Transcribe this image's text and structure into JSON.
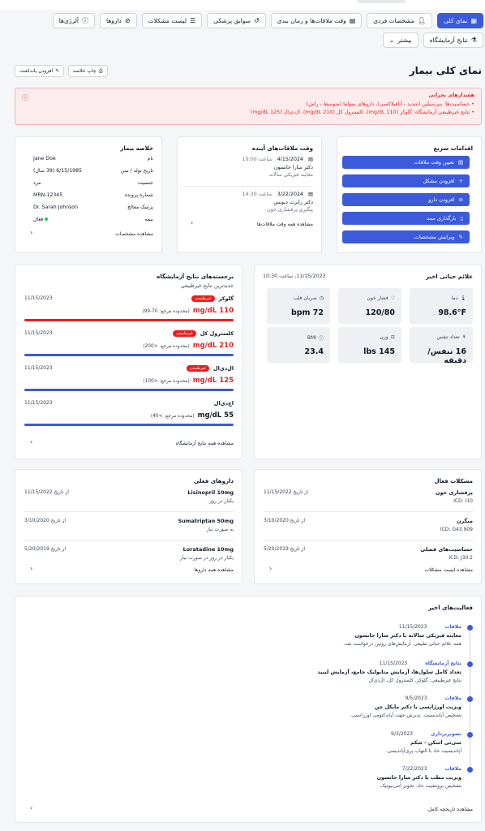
{
  "tabs": [
    {
      "label": "نمای کلی",
      "icon": "grid-icon",
      "active": true
    },
    {
      "label": "مشخصات فردی",
      "icon": "user-icon"
    },
    {
      "label": "وقت ملاقات‌ها و زمان بندی",
      "icon": "calendar-icon"
    },
    {
      "label": "سوابق پزشکی",
      "icon": "history-icon"
    },
    {
      "label": "لیست مشکلات",
      "icon": "list-icon"
    },
    {
      "label": "داروها",
      "icon": "pill-icon"
    },
    {
      "label": "آلرژی‌ها",
      "icon": "alert-circle-icon"
    },
    {
      "label": "نتایج آزمایشگاه",
      "icon": "flask-icon"
    }
  ],
  "more_tab": "بیشتر",
  "page_title": "نمای کلی بیمار",
  "print_button": "چاپ خلاصه",
  "note_button": "افزودن یادداشت",
  "alert": {
    "title": "هشدارهای بحرانی",
    "lines": [
      "• حساسیت‌ها: پنی‌سیلین (شدید - آنافیلاکسی)، داروهای سولفا (متوسط - راش)",
      "• نتایج غیرطبیعی آزمایشگاه: گلوکز (110 mg/dL)، کلسترول کل (210 mg/dL)، ال‌دی‌ال (125 mg/dL)"
    ]
  },
  "quick_actions": {
    "title": "اقدامات سریع",
    "items": [
      "تعیین وقت ملاقات",
      "افزودن مشکل",
      "افزودن دارو",
      "بارگذاری سند",
      "ویرایش مشخصات"
    ]
  },
  "appointments": {
    "title": "وقت ملاقات‌های آینده",
    "items": [
      {
        "date": "4/15/2024",
        "time": "ساعت 10:00",
        "doctor": "دکتر سارا جانسون",
        "desc": "معاینه فیزیکی سالانه"
      },
      {
        "date": "3/22/2024",
        "time": "ساعت 14:30",
        "doctor": "دکتر رابرت دیویس",
        "desc": "پیگیری پرفشاری خون"
      }
    ],
    "link": "مشاهده همه وقت ملاقات‌ها"
  },
  "summary": {
    "title": "خلاصه بیمار",
    "rows": [
      {
        "k": "نام",
        "v": "Jane Doe"
      },
      {
        "k": "تاریخ تولد / سن",
        "v": "6/15/1985 (39 سال)"
      },
      {
        "k": "جنسیت",
        "v": "مرد"
      },
      {
        "k": "شماره پرونده",
        "v": "MRN-12345"
      },
      {
        "k": "پزشک معالج",
        "v": "Dr. Sarah Johnson"
      },
      {
        "k": "بیمه",
        "v": "فعال"
      }
    ],
    "link": "مشاهده مشخصات"
  },
  "vitals": {
    "title": "علائم حیاتی اخیر",
    "date": "11/15/2023، ساعت 10:30",
    "items": [
      {
        "label": "دما",
        "value": "98.6°F",
        "icon": "thermometer-icon"
      },
      {
        "label": "فشار خون",
        "value": "120/80",
        "icon": "heart-icon"
      },
      {
        "label": "ضربان قلب",
        "value": "72 bpm",
        "icon": "clock-icon"
      },
      {
        "label": "تعداد تنفس",
        "value": "16 تنفس/دقیقه",
        "icon": "lungs-icon"
      },
      {
        "label": "وزن",
        "value": "145 lbs",
        "icon": "scale-icon"
      },
      {
        "label": "BMI",
        "value": "23.4",
        "icon": "info-icon"
      }
    ]
  },
  "labs": {
    "title": "برجسته‌های نتایج آزمایشگاه",
    "subtitle": "جدیدترین نتایج غیرطبیعی",
    "badge": "غیرطبیعی",
    "items": [
      {
        "name": "گلوکز",
        "date": "11/15/2023",
        "value": "110 mg/dL",
        "range": "(محدوده مرجع: 70-99)",
        "abnormal": true
      },
      {
        "name": "کلسترول کل",
        "date": "11/15/2023",
        "value": "210 mg/dL",
        "range": "(محدوده مرجع: <200)",
        "abnormal": true
      },
      {
        "name": "ال‌دی‌ال",
        "date": "11/15/2023",
        "value": "125 mg/dL",
        "range": "(محدوده مرجع: <100)",
        "abnormal": true
      },
      {
        "name": "اچ‌دی‌ال",
        "date": "11/15/2023",
        "value": "55 mg/dL",
        "range": "(محدوده مرجع: >40)",
        "abnormal": false
      }
    ],
    "link": "مشاهده همه نتایج آزمایشگاه"
  },
  "problems": {
    "title": "مشکلات فعال",
    "items": [
      {
        "name": "پرفشاری خون",
        "sub": "ICD: I10",
        "date": "از تاریخ 11/15/2022"
      },
      {
        "name": "میگرن",
        "sub": "ICD: G43.909",
        "date": "از تاریخ 3/10/2020"
      },
      {
        "name": "حساسیت‌های فصلی",
        "sub": "ICD: J30.2",
        "date": "از تاریخ 5/20/2019"
      }
    ],
    "link": "مشاهده لیست مشکلات"
  },
  "medications": {
    "title": "داروهای فعلی",
    "items": [
      {
        "name": "Lisinopril 10mg",
        "sub": "یکبار در روز",
        "date": "از تاریخ 11/15/2022"
      },
      {
        "name": "Sumatriptan 50mg",
        "sub": "به صورت نیاز",
        "date": "از تاریخ 3/10/2020"
      },
      {
        "name": "Loratadine 10mg",
        "sub": "یکبار در روز در صورت نیاز",
        "date": "از تاریخ 5/20/2019"
      }
    ],
    "link": "مشاهده همه داروها"
  },
  "activity": {
    "title": "فعالیت‌های اخیر",
    "items": [
      {
        "type": "ملاقات",
        "date": "11/15/2023",
        "title": "معاینه فیزیکی سالانه با دکتر سارا جانسون",
        "desc": "همه علائم حیاتی طبیعی. آزمایش‌های روتین درخواست شد."
      },
      {
        "type": "نتایج آزمایشگاه",
        "date": "11/15/2023",
        "title": "تعداد کامل سلول‌ها، آزمایش متابولیک جامع، آزمایش لیپید",
        "desc": "نتایج غیرطبیعی: گلوکز، کلسترول کل، ال‌دی‌ال"
      },
      {
        "type": "ملاقات",
        "date": "9/5/2023",
        "title": "ویزیت اورژانسی با دکتر مایکل چن",
        "desc": "تشخیص آپاندیسیت. پذیرش جهت آپاندکتومی اورژانسی."
      },
      {
        "type": "تصویربرداری",
        "date": "9/3/2023",
        "title": "سی‌تی اسکن - شکم",
        "desc": "آپاندیسیت حاد با التهاب پری‌آپاندیسی."
      },
      {
        "type": "ملاقات",
        "date": "7/22/2023",
        "title": "ویزیت مطب با دکتر سارا جانسون",
        "desc": "تشخیص برونشیت حاد. تجویز آنتی‌بیوتیک."
      }
    ],
    "link": "مشاهده تاریخچه کامل"
  }
}
